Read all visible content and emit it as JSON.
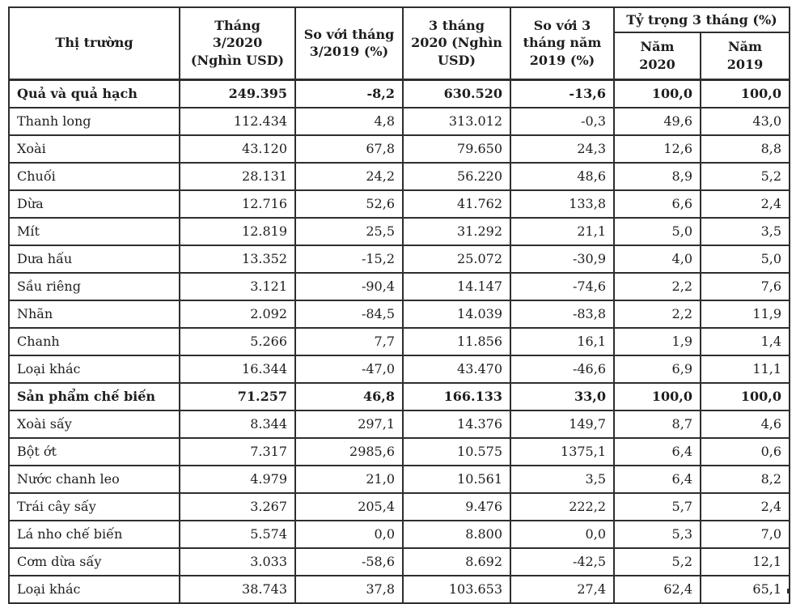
{
  "table": {
    "title_semantic": "fruit-and-processed-products-export-table",
    "unit_notes": [
      "Nghìn USD",
      "%"
    ],
    "columns": [
      {
        "label": "Thị trường"
      },
      {
        "label": "Tháng\n3/2020\n(Nghìn USD)"
      },
      {
        "label": "So với tháng\n3/2019 (%)"
      },
      {
        "label": "3 tháng\n2020 (Nghìn\nUSD)"
      },
      {
        "label": "So với 3\ntháng năm\n2019 (%)"
      },
      {
        "label": "Tỷ trọng 3 tháng (%)",
        "children": [
          "Năm\n2020",
          "Năm\n2019"
        ]
      }
    ],
    "rows": [
      {
        "label": "Quả và quả hạch",
        "bold": true,
        "values": [
          "249.395",
          "-8,2",
          "630.520",
          "-13,6",
          "100,0",
          "100,0"
        ]
      },
      {
        "label": "Thanh long",
        "bold": false,
        "values": [
          "112.434",
          "4,8",
          "313.012",
          "-0,3",
          "49,6",
          "43,0"
        ]
      },
      {
        "label": "Xoài",
        "bold": false,
        "values": [
          "43.120",
          "67,8",
          "79.650",
          "24,3",
          "12,6",
          "8,8"
        ]
      },
      {
        "label": "Chuối",
        "bold": false,
        "values": [
          "28.131",
          "24,2",
          "56.220",
          "48,6",
          "8,9",
          "5,2"
        ]
      },
      {
        "label": "Dừa",
        "bold": false,
        "values": [
          "12.716",
          "52,6",
          "41.762",
          "133,8",
          "6,6",
          "2,4"
        ]
      },
      {
        "label": "Mít",
        "bold": false,
        "values": [
          "12.819",
          "25,5",
          "31.292",
          "21,1",
          "5,0",
          "3,5"
        ]
      },
      {
        "label": "Dưa hấu",
        "bold": false,
        "values": [
          "13.352",
          "-15,2",
          "25.072",
          "-30,9",
          "4,0",
          "5,0"
        ]
      },
      {
        "label": "Sầu riêng",
        "bold": false,
        "values": [
          "3.121",
          "-90,4",
          "14.147",
          "-74,6",
          "2,2",
          "7,6"
        ]
      },
      {
        "label": "Nhãn",
        "bold": false,
        "values": [
          "2.092",
          "-84,5",
          "14.039",
          "-83,8",
          "2,2",
          "11,9"
        ]
      },
      {
        "label": "Chanh",
        "bold": false,
        "values": [
          "5.266",
          "7,7",
          "11.856",
          "16,1",
          "1,9",
          "1,4"
        ]
      },
      {
        "label": "Loại khác",
        "bold": false,
        "values": [
          "16.344",
          "-47,0",
          "43.470",
          "-46,6",
          "6,9",
          "11,1"
        ]
      },
      {
        "label": "Sản phẩm chế biến",
        "bold": true,
        "values": [
          "71.257",
          "46,8",
          "166.133",
          "33,0",
          "100,0",
          "100,0"
        ]
      },
      {
        "label": "Xoài sấy",
        "bold": false,
        "values": [
          "8.344",
          "297,1",
          "14.376",
          "149,7",
          "8,7",
          "4,6"
        ]
      },
      {
        "label": "Bột ớt",
        "bold": false,
        "values": [
          "7.317",
          "2985,6",
          "10.575",
          "1375,1",
          "6,4",
          "0,6"
        ]
      },
      {
        "label": "Nước chanh leo",
        "bold": false,
        "values": [
          "4.979",
          "21,0",
          "10.561",
          "3,5",
          "6,4",
          "8,2"
        ]
      },
      {
        "label": "Trái cây sấy",
        "bold": false,
        "values": [
          "3.267",
          "205,4",
          "9.476",
          "222,2",
          "5,7",
          "2,4"
        ]
      },
      {
        "label": "Lá nho chế biến",
        "bold": false,
        "values": [
          "5.574",
          "0,0",
          "8.800",
          "0,0",
          "5,3",
          "7,0"
        ]
      },
      {
        "label": "Cơm dừa sấy",
        "bold": false,
        "values": [
          "3.033",
          "-58,6",
          "8.692",
          "-42,5",
          "5,2",
          "12,1"
        ]
      },
      {
        "label": "Loại khác",
        "bold": false,
        "values": [
          "38.743",
          "37,8",
          "103.653",
          "27,4",
          "62,4",
          "65,1"
        ]
      }
    ]
  },
  "colors": {
    "text": "#1e1e21",
    "border": "#2e2e2e",
    "background": "#ffffff"
  }
}
